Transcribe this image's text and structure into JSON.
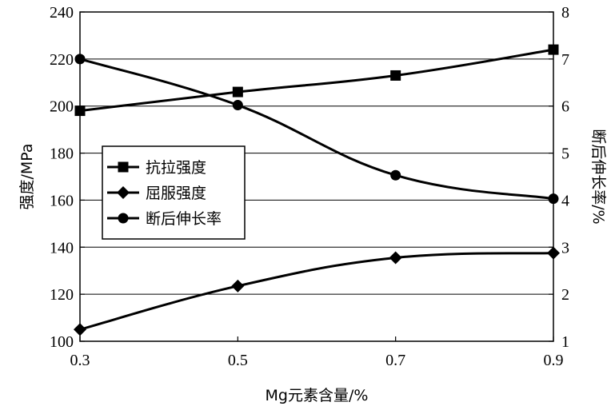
{
  "chart_data": {
    "type": "line",
    "x": [
      0.3,
      0.5,
      0.7,
      0.9
    ],
    "x_tick_labels": [
      "0.3",
      "0.5",
      "0.7",
      "0.9"
    ],
    "xlim": [
      0.3,
      0.9
    ],
    "xlabel": "Mg元素含量/%",
    "ylabel": "强度/MPa",
    "ylim": [
      100,
      240
    ],
    "y_ticks": [
      "100",
      "120",
      "140",
      "160",
      "180",
      "200",
      "220",
      "240"
    ],
    "y2label": "断后伸长率/%",
    "y2lim": [
      1,
      8
    ],
    "y2_ticks": [
      "1",
      "2",
      "3",
      "4",
      "5",
      "6",
      "7",
      "8"
    ],
    "grid": true,
    "legend_position": "center-left",
    "series": [
      {
        "name": "抗拉强度",
        "axis": "left",
        "marker": "square",
        "values": [
          198,
          206,
          213,
          224
        ]
      },
      {
        "name": "屈服强度",
        "axis": "left",
        "marker": "diamond",
        "values": [
          105,
          123.5,
          135.5,
          137.5
        ]
      },
      {
        "name": "断后伸长率",
        "axis": "right",
        "marker": "circle",
        "values": [
          7.0,
          6.02,
          4.53,
          4.03
        ]
      }
    ],
    "colors": {
      "line": "#000000",
      "grid": "#000000",
      "background": "#ffffff"
    }
  }
}
